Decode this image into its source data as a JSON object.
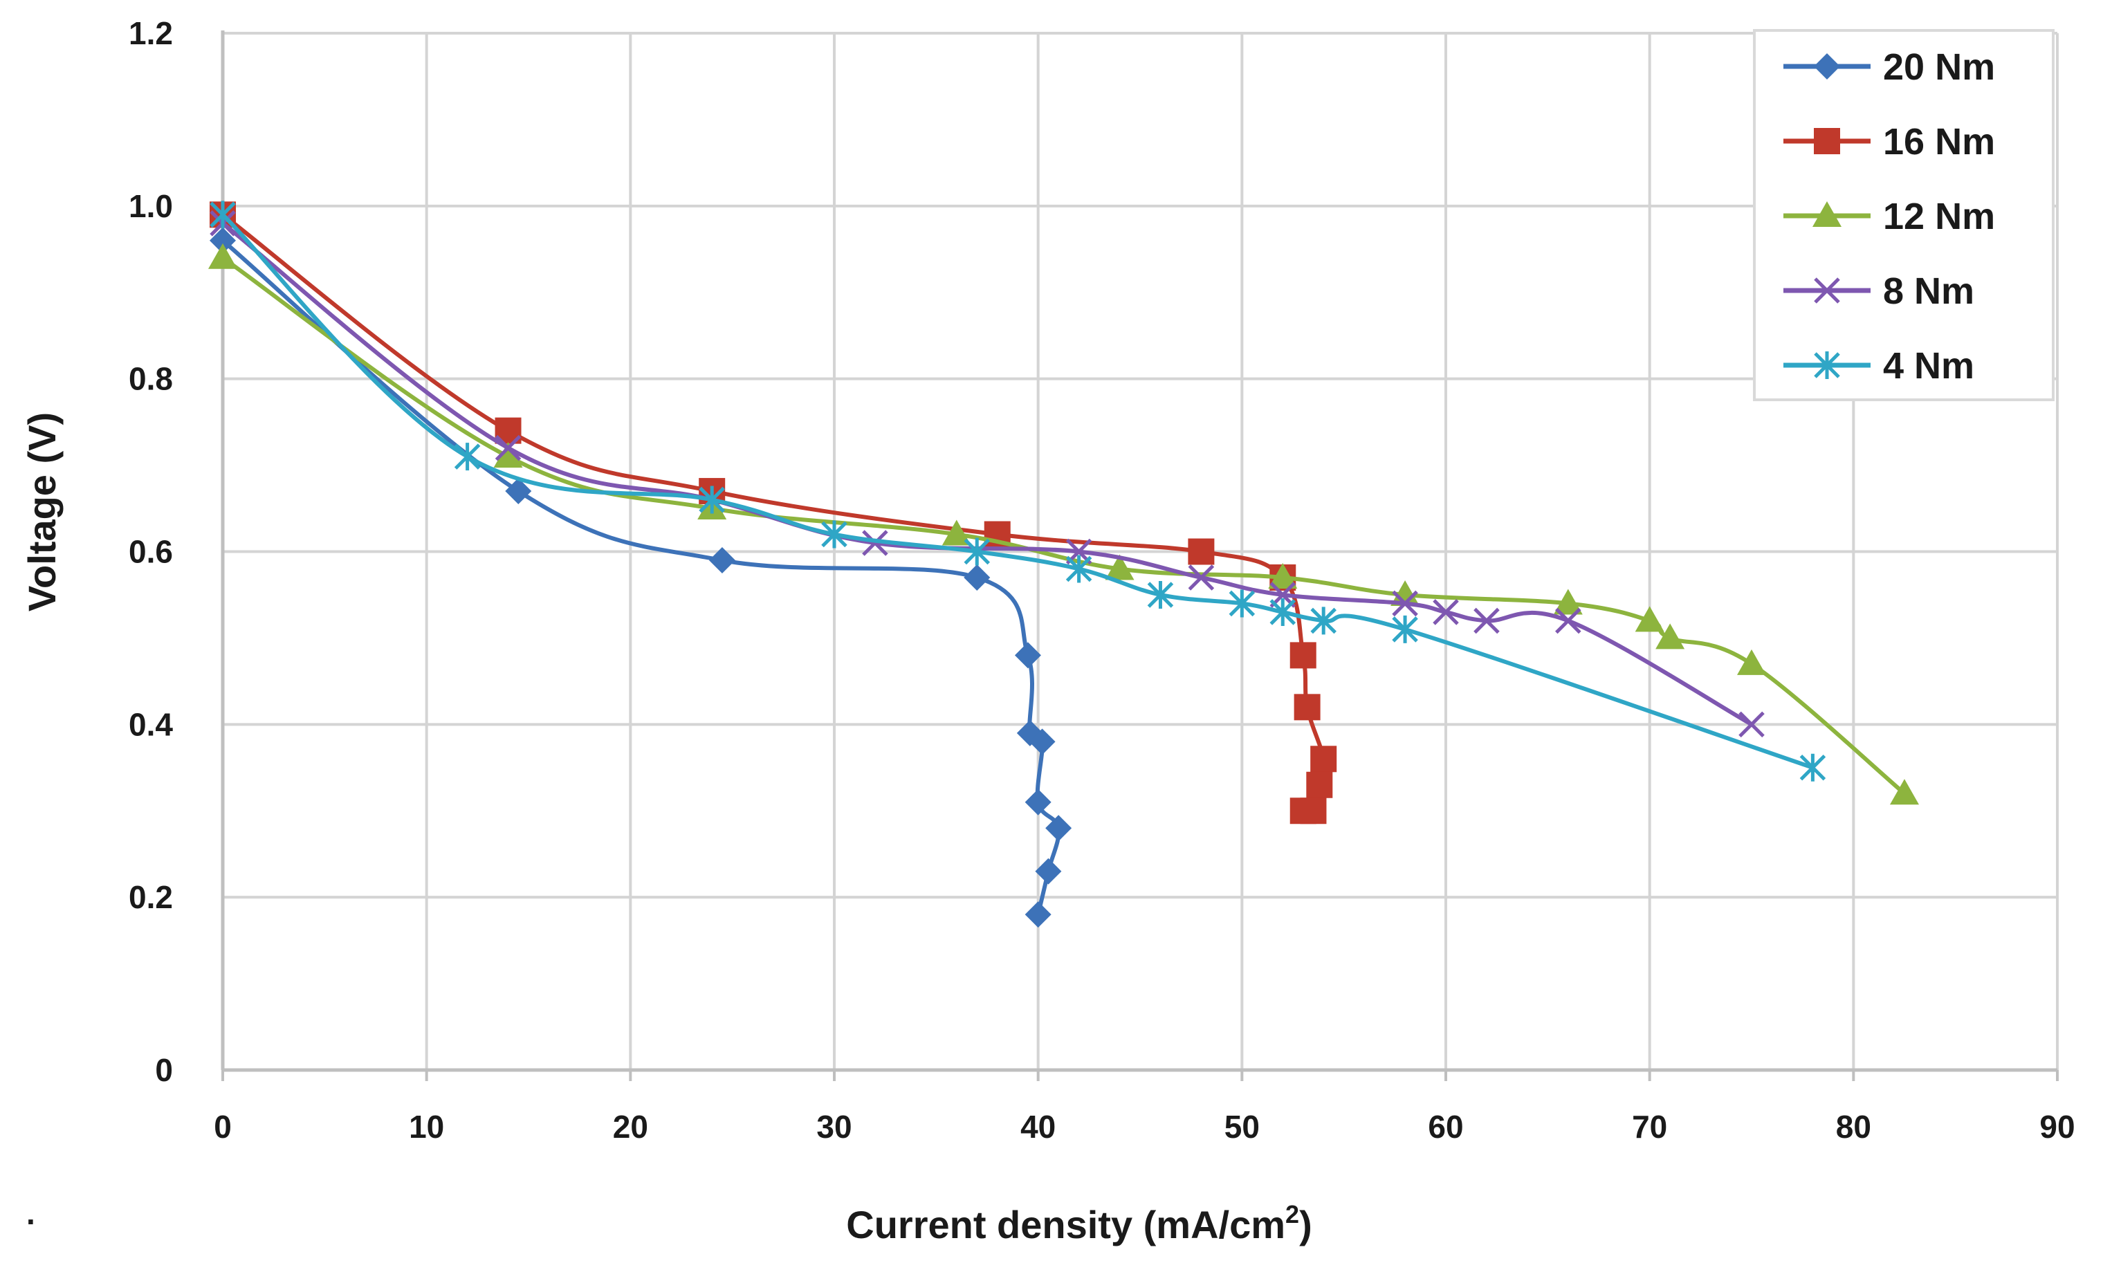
{
  "chart_data": {
    "type": "line",
    "title": "",
    "xlabel": "Current density (mA/cm",
    "xlabel_superscript": "2",
    "xlabel_suffix": ")",
    "ylabel": "Voltage (V)",
    "xlim": [
      0,
      90
    ],
    "ylim": [
      0,
      1.2
    ],
    "x_ticks": [
      "0",
      "10",
      "20",
      "30",
      "40",
      "50",
      "60",
      "70",
      "80",
      "90"
    ],
    "y_ticks": [
      "0",
      "0.2",
      "0.4",
      "0.6",
      "0.8",
      "1.0",
      "1.2"
    ],
    "x_tick_values": [
      0,
      10,
      20,
      30,
      40,
      50,
      60,
      70,
      80,
      90
    ],
    "y_tick_values": [
      0,
      0.2,
      0.4,
      0.6,
      0.8,
      1.0,
      1.2
    ],
    "grid": true,
    "legend_position": "top-right",
    "footnote": ".",
    "series": [
      {
        "name": "20 Nm",
        "color": "#3d72b8",
        "marker": "diamond",
        "points": [
          [
            0,
            0.96
          ],
          [
            14.5,
            0.67
          ],
          [
            24.5,
            0.59
          ],
          [
            37,
            0.57
          ],
          [
            39.5,
            0.48
          ],
          [
            39.6,
            0.39
          ],
          [
            40.2,
            0.38
          ],
          [
            40,
            0.31
          ],
          [
            41,
            0.28
          ],
          [
            40.5,
            0.23
          ],
          [
            40,
            0.18
          ]
        ]
      },
      {
        "name": "16 Nm",
        "color": "#c0392b",
        "marker": "square",
        "points": [
          [
            0,
            0.99
          ],
          [
            14,
            0.74
          ],
          [
            24,
            0.67
          ],
          [
            38,
            0.62
          ],
          [
            48,
            0.6
          ],
          [
            52,
            0.57
          ],
          [
            53,
            0.48
          ],
          [
            53.2,
            0.42
          ],
          [
            54,
            0.36
          ],
          [
            53.8,
            0.33
          ],
          [
            53.5,
            0.3
          ],
          [
            53,
            0.3
          ]
        ]
      },
      {
        "name": "12 Nm",
        "color": "#8db43e",
        "marker": "triangle",
        "points": [
          [
            0,
            0.94
          ],
          [
            14,
            0.71
          ],
          [
            24,
            0.65
          ],
          [
            36,
            0.62
          ],
          [
            44,
            0.58
          ],
          [
            52,
            0.57
          ],
          [
            58,
            0.55
          ],
          [
            66,
            0.54
          ],
          [
            70,
            0.52
          ],
          [
            71,
            0.5
          ],
          [
            75,
            0.47
          ],
          [
            82.5,
            0.32
          ]
        ]
      },
      {
        "name": "8 Nm",
        "color": "#7e57b0",
        "marker": "x",
        "points": [
          [
            0,
            0.98
          ],
          [
            14,
            0.72
          ],
          [
            24,
            0.66
          ],
          [
            32,
            0.61
          ],
          [
            42,
            0.6
          ],
          [
            48,
            0.57
          ],
          [
            52,
            0.55
          ],
          [
            58,
            0.54
          ],
          [
            60,
            0.53
          ],
          [
            62,
            0.52
          ],
          [
            66,
            0.52
          ],
          [
            75,
            0.4
          ]
        ]
      },
      {
        "name": "4 Nm",
        "color": "#2fa6c6",
        "marker": "asterisk",
        "points": [
          [
            0,
            0.99
          ],
          [
            12,
            0.71
          ],
          [
            24,
            0.66
          ],
          [
            30,
            0.62
          ],
          [
            37,
            0.6
          ],
          [
            42,
            0.58
          ],
          [
            46,
            0.55
          ],
          [
            50,
            0.54
          ],
          [
            52,
            0.53
          ],
          [
            54,
            0.52
          ],
          [
            58,
            0.51
          ],
          [
            78,
            0.35
          ]
        ]
      }
    ]
  }
}
